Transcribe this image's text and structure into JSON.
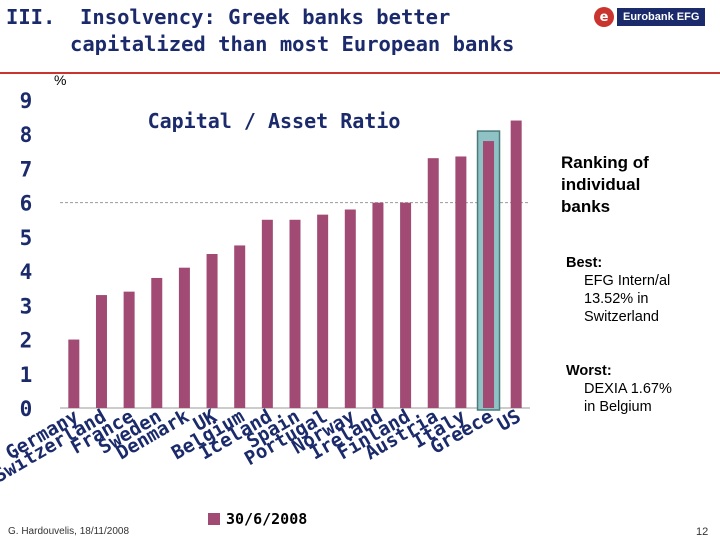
{
  "slide": {
    "title_line1": "III.  Insolvency: Greek banks better",
    "title_line2": "capitalized than most European banks",
    "logo_text": "Eurobank EFG",
    "logo_mark": "e",
    "unit": "%",
    "ranking_heading": [
      "Ranking of",
      "individual",
      "banks"
    ],
    "best_label": "Best:",
    "best_lines": [
      "EFG Intern/al",
      "13.52% in",
      "Switzerland"
    ],
    "worst_label": "Worst:",
    "worst_lines": [
      "DEXIA 1.67%",
      "in Belgium"
    ],
    "footer": "G. Hardouvelis, 18/11/2008",
    "page_number": "12"
  },
  "colors": {
    "title": "#1b2a6b",
    "accent": "#c9342f",
    "bar": "#a04a74",
    "highlight_fill": "#8fc2c4",
    "highlight_border": "#4a7a7c"
  },
  "chart_data": {
    "type": "bar",
    "title": "Capital / Asset Ratio",
    "categories": [
      "Germany",
      "Switzerland",
      "France",
      "Sweden",
      "Denmark",
      "UK",
      "Belgium",
      "Iceland",
      "Spain",
      "Portugal",
      "Norway",
      "Ireland",
      "Finland",
      "Austria",
      "Italy",
      "Greece",
      "US"
    ],
    "series": [
      {
        "name": "30/6/2008",
        "values": [
          2.0,
          3.3,
          3.4,
          3.8,
          4.1,
          4.5,
          4.75,
          5.5,
          5.5,
          5.65,
          5.8,
          6.0,
          6.0,
          7.3,
          7.35,
          7.8,
          8.4
        ]
      }
    ],
    "highlight_category": "Greece",
    "yticks": [
      0,
      1,
      2,
      3,
      4,
      5,
      6,
      7,
      8,
      9
    ],
    "ylim": [
      0,
      9
    ],
    "grid": "dashed at 6"
  }
}
